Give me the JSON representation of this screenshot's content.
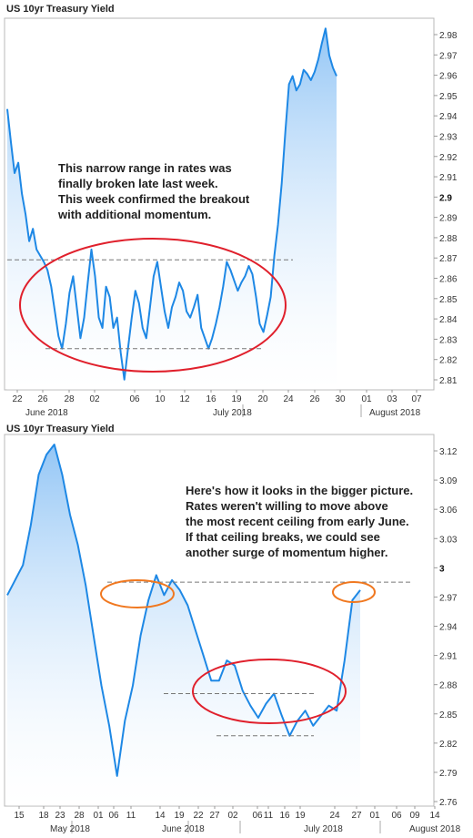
{
  "chart_data": [
    {
      "type": "area",
      "title": "US 10yr Treasury Yield",
      "ylim": [
        2.81,
        2.99
      ],
      "x_ticks": [
        "22",
        "26",
        "28",
        "02",
        "06",
        "10",
        "12",
        "16",
        "19",
        "20",
        "24",
        "26",
        "30",
        "01",
        "03",
        "07"
      ],
      "months": [
        "June 2018",
        "July 2018",
        "August 2018"
      ],
      "y_ticks": [
        "2.98",
        "2.97",
        "2.96",
        "2.95",
        "2.94",
        "2.93",
        "2.92",
        "2.91",
        "2.9",
        "2.89",
        "2.88",
        "2.87",
        "2.86",
        "2.85",
        "2.84",
        "2.83",
        "2.82",
        "2.81"
      ],
      "y_highlight": "2.9",
      "annotation": [
        "This narrow range in rates was",
        "finally broken late last week.",
        "This week confirmed the breakout",
        "with additional momentum."
      ],
      "reference_lines": [
        2.873,
        2.83
      ],
      "series": [
        {
          "x": [
            0,
            2,
            4,
            6,
            8,
            10,
            12,
            14,
            16,
            18,
            20,
            22,
            24,
            26,
            28,
            30,
            32,
            34,
            36,
            38,
            40,
            42,
            44,
            46,
            48,
            50,
            52,
            54,
            56,
            58,
            60,
            62,
            64,
            66,
            68,
            70,
            72,
            74,
            76,
            78,
            80,
            82,
            84,
            86,
            88,
            90,
            92,
            94,
            96,
            98,
            100,
            102,
            104,
            106,
            108,
            110,
            112,
            114,
            116,
            118,
            120,
            122,
            124,
            126,
            128,
            130,
            132,
            134,
            136,
            138,
            140,
            142,
            144,
            146,
            148,
            150,
            152,
            154,
            156,
            158,
            160,
            162,
            164,
            166,
            168,
            170,
            172,
            174,
            176,
            178,
            180
          ],
          "values": [
            2.946,
            2.93,
            2.915,
            2.92,
            2.905,
            2.895,
            2.882,
            2.888,
            2.878,
            2.875,
            2.872,
            2.868,
            2.86,
            2.848,
            2.836,
            2.83,
            2.842,
            2.857,
            2.865,
            2.85,
            2.835,
            2.845,
            2.862,
            2.878,
            2.865,
            2.845,
            2.84,
            2.86,
            2.855,
            2.84,
            2.845,
            2.828,
            2.815,
            2.83,
            2.845,
            2.858,
            2.852,
            2.84,
            2.835,
            2.85,
            2.865,
            2.872,
            2.86,
            2.848,
            2.84,
            2.85,
            2.855,
            2.862,
            2.858,
            2.848,
            2.845,
            2.85,
            2.856,
            2.84,
            2.835,
            2.83,
            2.835,
            2.842,
            2.85,
            2.86,
            2.872,
            2.868,
            2.863,
            2.858,
            2.862,
            2.865,
            2.87,
            2.866,
            2.855,
            2.842,
            2.838,
            2.846,
            2.855,
            2.875,
            2.89,
            2.91,
            2.935,
            2.958,
            2.962,
            2.955,
            2.958,
            2.965,
            2.963,
            2.96,
            2.964,
            2.97,
            2.978,
            2.985,
            2.972,
            2.966,
            2.962
          ]
        }
      ]
    },
    {
      "type": "area",
      "title": "US 10yr Treasury Yield",
      "ylim": [
        2.76,
        3.13
      ],
      "x_ticks": [
        "15",
        "18",
        "23",
        "28",
        "01",
        "06",
        "11",
        "14",
        "19",
        "22",
        "27",
        "02",
        "06",
        "11",
        "16",
        "19",
        "24",
        "27",
        "01",
        "06",
        "09",
        "14"
      ],
      "months": [
        "May 2018",
        "June 2018",
        "July 2018",
        "August 2018"
      ],
      "y_ticks": [
        "3.12",
        "3.09",
        "3.06",
        "3.03",
        "3",
        "2.97",
        "2.94",
        "2.91",
        "2.88",
        "2.85",
        "2.82",
        "2.79",
        "2.76"
      ],
      "y_highlight": "3",
      "annotation": [
        "Here's how it looks in the bigger picture.",
        "Rates weren't willing to move above",
        "the most recent ceiling from early June.",
        "If that ceiling breaks, we could see",
        "another surge of momentum higher."
      ],
      "reference_lines": [
        2.983,
        2.872,
        2.83
      ],
      "series": [
        {
          "x": [
            0,
            3,
            6,
            9,
            12,
            15,
            18,
            21,
            24,
            27,
            30,
            33,
            36,
            39,
            42,
            45,
            48,
            51,
            54,
            57,
            60,
            63,
            66,
            69,
            72,
            75,
            78,
            81,
            84,
            87,
            90,
            93,
            96,
            99,
            102,
            105,
            108,
            111,
            114,
            117,
            120,
            123,
            126,
            129,
            132,
            135
          ],
          "values": [
            2.97,
            2.985,
            3.0,
            3.04,
            3.09,
            3.11,
            3.12,
            3.09,
            3.05,
            3.02,
            2.98,
            2.93,
            2.88,
            2.84,
            2.79,
            2.845,
            2.88,
            2.93,
            2.965,
            2.99,
            2.97,
            2.985,
            2.975,
            2.96,
            2.935,
            2.91,
            2.885,
            2.885,
            2.905,
            2.9,
            2.875,
            2.86,
            2.848,
            2.862,
            2.872,
            2.85,
            2.83,
            2.845,
            2.855,
            2.84,
            2.85,
            2.86,
            2.855,
            2.905,
            2.965,
            2.975
          ]
        }
      ]
    }
  ]
}
